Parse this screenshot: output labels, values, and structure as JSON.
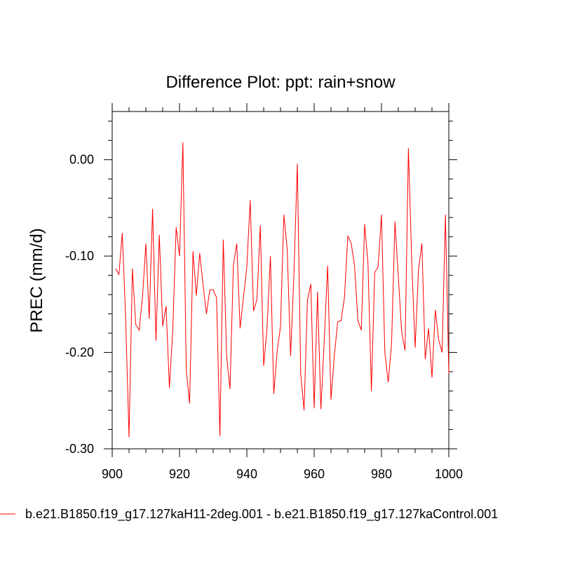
{
  "chart_data": {
    "type": "line",
    "title": "Difference Plot: ppt: rain+snow",
    "xlabel": "",
    "ylabel": "PREC  (mm/d)",
    "xlim": [
      900,
      1000
    ],
    "ylim": [
      -0.3,
      0.05
    ],
    "x_ticks": [
      900,
      920,
      940,
      960,
      980,
      1000
    ],
    "x_tick_labels": [
      "900",
      "920",
      "940",
      "960",
      "980",
      "1000"
    ],
    "y_ticks": [
      0.0,
      -0.1,
      -0.2,
      -0.3
    ],
    "y_tick_labels": [
      "0.00",
      "-0.10",
      "-0.20",
      "-0.30"
    ],
    "grid": false,
    "series": [
      {
        "name": "b.e21.B1850.f19_g17.127kaH11-2deg.001 - b.e21.B1850.f19_g17.127kaControl.001",
        "color": "#ff0000",
        "x": [
          901,
          902,
          903,
          904,
          905,
          906,
          907,
          908,
          909,
          910,
          911,
          912,
          913,
          914,
          915,
          916,
          917,
          918,
          919,
          920,
          921,
          922,
          923,
          924,
          925,
          926,
          927,
          928,
          929,
          930,
          931,
          932,
          933,
          934,
          935,
          936,
          937,
          938,
          939,
          940,
          941,
          942,
          943,
          944,
          945,
          946,
          947,
          948,
          949,
          950,
          951,
          952,
          953,
          954,
          955,
          956,
          957,
          958,
          959,
          960,
          961,
          962,
          963,
          964,
          965,
          966,
          967,
          968,
          969,
          970,
          971,
          972,
          973,
          974,
          975,
          976,
          977,
          978,
          979,
          980,
          981,
          982,
          983,
          984,
          985,
          986,
          987,
          988,
          989,
          990,
          991,
          992,
          993,
          994,
          995,
          996,
          997,
          998,
          999,
          1000
        ],
        "values": [
          -0.113,
          -0.119,
          -0.076,
          -0.165,
          -0.288,
          -0.113,
          -0.171,
          -0.177,
          -0.143,
          -0.087,
          -0.165,
          -0.051,
          -0.188,
          -0.078,
          -0.173,
          -0.152,
          -0.237,
          -0.176,
          -0.07,
          -0.1,
          0.018,
          -0.218,
          -0.253,
          -0.095,
          -0.141,
          -0.097,
          -0.13,
          -0.16,
          -0.135,
          -0.135,
          -0.143,
          -0.287,
          -0.083,
          -0.204,
          -0.238,
          -0.11,
          -0.087,
          -0.175,
          -0.143,
          -0.111,
          -0.042,
          -0.157,
          -0.145,
          -0.068,
          -0.214,
          -0.175,
          -0.1,
          -0.243,
          -0.199,
          -0.173,
          -0.057,
          -0.093,
          -0.204,
          -0.118,
          -0.004,
          -0.222,
          -0.26,
          -0.146,
          -0.129,
          -0.258,
          -0.137,
          -0.259,
          -0.187,
          -0.11,
          -0.249,
          -0.203,
          -0.168,
          -0.167,
          -0.143,
          -0.079,
          -0.087,
          -0.11,
          -0.167,
          -0.177,
          -0.067,
          -0.108,
          -0.24,
          -0.117,
          -0.111,
          -0.057,
          -0.2,
          -0.231,
          -0.191,
          -0.064,
          -0.121,
          -0.179,
          -0.198,
          0.012,
          -0.107,
          -0.195,
          -0.114,
          -0.087,
          -0.207,
          -0.175,
          -0.226,
          -0.156,
          -0.187,
          -0.2,
          -0.057,
          -0.222
        ]
      }
    ],
    "legend_position": "bottom"
  }
}
